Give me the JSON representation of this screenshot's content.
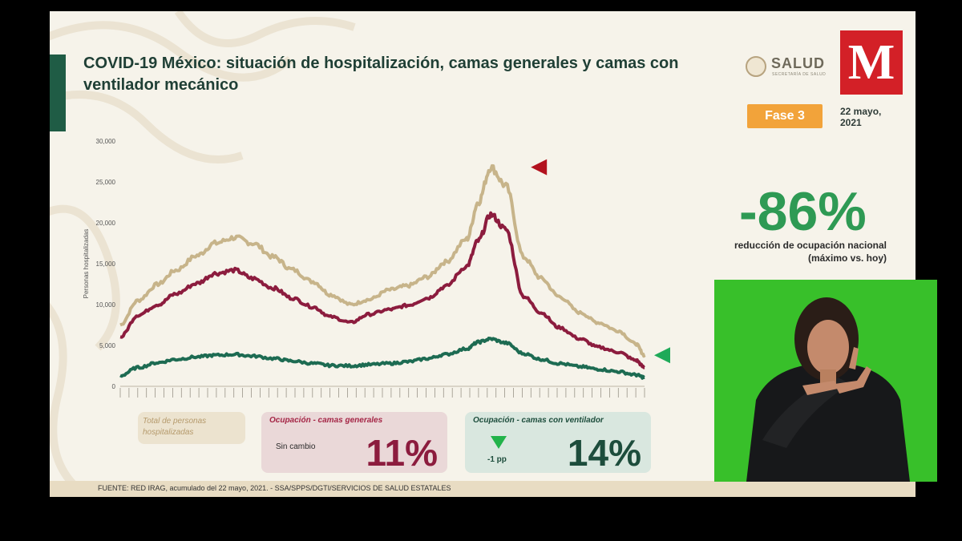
{
  "title": "COVID-19 México: situación de hospitalización, camas generales y camas con ventilador mecánico",
  "logos": {
    "salud_text": "SALUD",
    "salud_subtext": "SECRETARÍA DE SALUD",
    "broadcaster_letter": "M"
  },
  "phase_badge": "Fase 3",
  "report_date": "22 mayo,\n2021",
  "reduction": {
    "value": "-86%",
    "label": "reducción de ocupación nacional\n(máximo vs. hoy)"
  },
  "legend": {
    "total_label": "Total de personas\nhospitalizadas",
    "generales": {
      "title": "Ocupación - camas generales",
      "status": "Sin cambio",
      "pct": "11%"
    },
    "ventilador": {
      "title": "Ocupación - camas con ventilador",
      "status": "-1 pp",
      "pct": "14%"
    }
  },
  "source": "FUENTE: RED IRAG, acumulado del 22 mayo, 2021. -  SSA/SPPS/DGTI/SERVICIOS DE SALUD ESTATALES",
  "colors": {
    "total": "#c7b48a",
    "generales": "#8c1c3e",
    "ventilador": "#1d6b52",
    "accent_green": "#2e9a54",
    "phase_orange": "#f2a33a",
    "marker_red": "#b3121e",
    "marker_green": "#1faa59"
  },
  "chart_data": {
    "type": "line",
    "title": "",
    "xlabel": "",
    "ylabel": "Personas hospitalizadas",
    "ylim": [
      0,
      30000
    ],
    "yticks": [
      0,
      5000,
      10000,
      15000,
      20000,
      25000,
      30000
    ],
    "ytick_labels": [
      "0",
      "5,000",
      "10,000",
      "15,000",
      "20,000",
      "25,000",
      "30,000"
    ],
    "grid": false,
    "x": [
      "2020-04-01",
      "2020-04-15",
      "2020-05-01",
      "2020-05-15",
      "2020-06-01",
      "2020-06-15",
      "2020-07-01",
      "2020-07-15",
      "2020-08-01",
      "2020-08-15",
      "2020-09-01",
      "2020-09-15",
      "2020-10-01",
      "2020-10-15",
      "2020-11-01",
      "2020-11-15",
      "2020-12-01",
      "2020-12-15",
      "2021-01-01",
      "2021-01-10",
      "2021-01-20",
      "2021-02-01",
      "2021-02-15",
      "2021-03-01",
      "2021-03-15",
      "2021-04-01",
      "2021-04-15",
      "2021-05-01",
      "2021-05-15",
      "2021-05-22"
    ],
    "series": [
      {
        "name": "Total de personas hospitalizadas",
        "color": "#c7b48a",
        "values": [
          7500,
          10500,
          12500,
          14200,
          16000,
          17500,
          18200,
          17500,
          15800,
          14300,
          12800,
          11200,
          10000,
          10600,
          11800,
          12300,
          13400,
          15200,
          18000,
          22500,
          26800,
          24500,
          15800,
          13200,
          11000,
          9000,
          7800,
          6800,
          5200,
          3800
        ]
      },
      {
        "name": "Ocupación - camas generales",
        "color": "#8c1c3e",
        "values": [
          6000,
          8700,
          10000,
          11300,
          12600,
          13800,
          14200,
          13200,
          12000,
          10800,
          9700,
          8500,
          7800,
          8800,
          9400,
          9900,
          10800,
          12200,
          14700,
          17800,
          21000,
          19200,
          11000,
          9000,
          7200,
          5800,
          4800,
          4200,
          3200,
          2300
        ]
      },
      {
        "name": "Ocupación - camas con ventilador",
        "color": "#1d6b52",
        "values": [
          1300,
          2300,
          2900,
          3300,
          3600,
          3800,
          3900,
          3700,
          3400,
          3100,
          2800,
          2550,
          2500,
          2650,
          2800,
          3000,
          3400,
          3900,
          4600,
          5400,
          5800,
          5300,
          4000,
          3300,
          2800,
          2400,
          2100,
          1800,
          1400,
          1100
        ]
      }
    ],
    "markers": [
      {
        "series": "Total de personas hospitalizadas",
        "position": "peak",
        "color": "#b3121e"
      },
      {
        "series": "Total de personas hospitalizadas",
        "position": "end",
        "color": "#1faa59"
      }
    ]
  }
}
